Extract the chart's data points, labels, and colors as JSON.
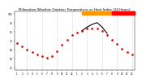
{
  "title": "Milwaukee Weather Outdoor Temperature vs Heat Index (24 Hours)",
  "title_fontsize": 3.0,
  "background_color": "#ffffff",
  "plot_bg_color": "#ffffff",
  "grid_color": "#bbbbbb",
  "xlim": [
    0.5,
    24.5
  ],
  "ylim": [
    42,
    108
  ],
  "yticks": [
    45,
    55,
    65,
    75,
    85,
    95,
    105
  ],
  "ytick_labels": [
    "45",
    "55",
    "65",
    "75",
    "85",
    "95",
    "105"
  ],
  "xtick_positions": [
    1,
    2,
    3,
    4,
    5,
    6,
    7,
    8,
    9,
    10,
    11,
    12,
    13,
    14,
    15,
    16,
    17,
    18,
    19,
    20,
    21,
    22,
    23,
    24
  ],
  "xtick_labels": [
    "1",
    "2",
    "3",
    "4",
    "5",
    "6",
    "7",
    "8",
    "9",
    "10",
    "11",
    "12",
    "1",
    "2",
    "3",
    "4",
    "5",
    "6",
    "7",
    "8",
    "9",
    "10",
    "11",
    "12"
  ],
  "temp_color": "#dd0000",
  "temp_data": [
    [
      1,
      72
    ],
    [
      2,
      68
    ],
    [
      3,
      65
    ],
    [
      4,
      62
    ],
    [
      5,
      59
    ],
    [
      6,
      57
    ],
    [
      7,
      56
    ],
    [
      8,
      57
    ],
    [
      9,
      63
    ],
    [
      10,
      70
    ],
    [
      11,
      76
    ],
    [
      12,
      81
    ],
    [
      13,
      84
    ],
    [
      14,
      86
    ],
    [
      15,
      88
    ],
    [
      16,
      88
    ],
    [
      17,
      88
    ],
    [
      18,
      86
    ],
    [
      19,
      81
    ],
    [
      20,
      76
    ],
    [
      21,
      71
    ],
    [
      22,
      66
    ],
    [
      23,
      62
    ],
    [
      24,
      59
    ]
  ],
  "heat_index_data": [
    [
      14,
      86
    ],
    [
      15,
      90
    ],
    [
      16,
      93
    ],
    [
      17,
      95
    ],
    [
      18,
      90
    ],
    [
      19,
      83
    ]
  ],
  "hi_line_color": "#000000",
  "orange_start": 14,
  "orange_end": 20,
  "red_start": 20,
  "red_end": 24.5,
  "orange_color": "#ff9900",
  "red_color": "#ff0000",
  "vgrid_positions": [
    3,
    6,
    9,
    12,
    15,
    18,
    21,
    24
  ]
}
